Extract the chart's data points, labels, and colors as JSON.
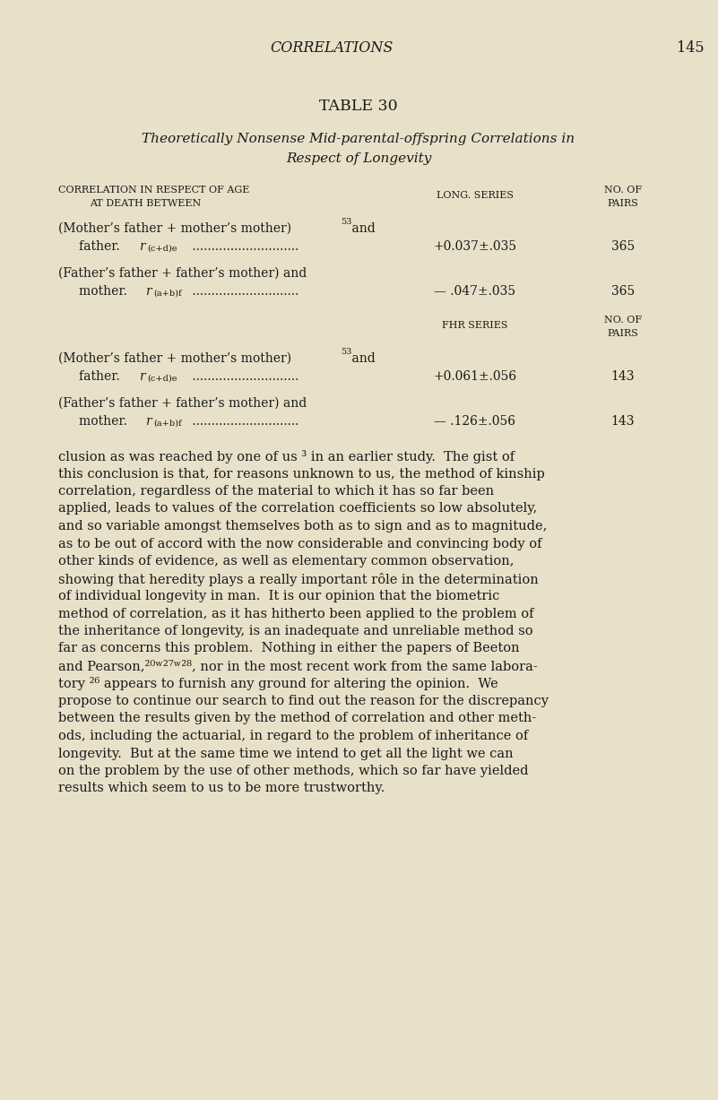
{
  "bg_color": "#e8e0c8",
  "page_width": 8.01,
  "page_height": 12.27,
  "dpi": 100,
  "text_color": "#1a1a1a",
  "header": "CORRELATIONS",
  "page_num": "145",
  "table_title": "TABLE 30",
  "subtitle1": "Theoretically Nonsense Mid-parental-offspring Correlations in",
  "subtitle2": "Respect of Longevity",
  "col1_line1": "CORRELATION IN RESPECT OF AGE",
  "col1_line2": "AT DEATH BETWEEN",
  "col2_label": "LONG. SERIES",
  "col3_line1": "NO. OF",
  "col3_line2": "PAIRS",
  "r1l1": "(Mother’s father + mother’s mother)",
  "r1l1_sup": "53",
  "r1l1_end": " and",
  "r1l2_pre": "father.  ",
  "r1l2_r": "r",
  "r1l2_sub": "(c+d)e",
  "r1l2_dots": " ............................",
  "r1_val": "+0.037±.035",
  "r1_pairs": "365",
  "r2l1": "(Father’s father + father’s mother) and",
  "r2l2_pre": "mother.  ",
  "r2l2_r": "r",
  "r2l2_sub": "(a+b)f",
  "r2l2_dots": " ............................",
  "r2_val": "— .047±.035",
  "r2_pairs": "365",
  "fhr_label": "FHR SERIES",
  "fhr_no": "NO. OF",
  "fhr_pairs": "PAIRS",
  "r3l1": "(Mother’s father + mother’s mother)",
  "r3l1_sup": "53",
  "r3l1_end": " and",
  "r3l2_pre": "father.  ",
  "r3l2_r": "r",
  "r3l2_sub": "(c+d)e",
  "r3l2_dots": " ............................",
  "r3_val": "+0.061±.056",
  "r3_pairs": "143",
  "r4l1": "(Father’s father + father’s mother) and",
  "r4l2_pre": "mother.  ",
  "r4l2_r": "r",
  "r4l2_sub": "(a+b)f",
  "r4l2_dots": " ............................",
  "r4_val": "— .126±.056",
  "r4_pairs": "143",
  "body_lines": [
    "clusion as was reached by one of us ³ in an earlier study.  The gist of",
    "this conclusion is that, for reasons unknown to us, the method of kinship",
    "correlation, regardless of the material to which it has so far been",
    "applied, leads to values of the correlation coefficients so low absolutely,",
    "and so variable amongst themselves both as to sign and as to magnitude,",
    "as to be out of accord with the now considerable and convincing body of",
    "other kinds of evidence, as well as elementary common observation,",
    "showing that heredity plays a really important rôle in the determination",
    "of individual longevity in man.  It is our opinion that the biometric",
    "method of correlation, as it has hitherto been applied to the problem of",
    "the inheritance of longevity, is an inadequate and unreliable method so",
    "far as concerns this problem.  Nothing in either the papers of Beeton",
    "and Pearson,²⁰ʷ²⁷ʷ²⁸, nor in the most recent work from the same labora-",
    "tory ²⁶ appears to furnish any ground for altering the opinion.  We",
    "propose to continue our search to find out the reason for the discrepancy",
    "between the results given by the method of correlation and other meth-",
    "ods, including the actuarial, in regard to the problem of inheritance of",
    "longevity.  But at the same time we intend to get all the light we can",
    "on the problem by the use of other methods, which so far have yielded",
    "results which seem to us to be more trustworthy."
  ]
}
